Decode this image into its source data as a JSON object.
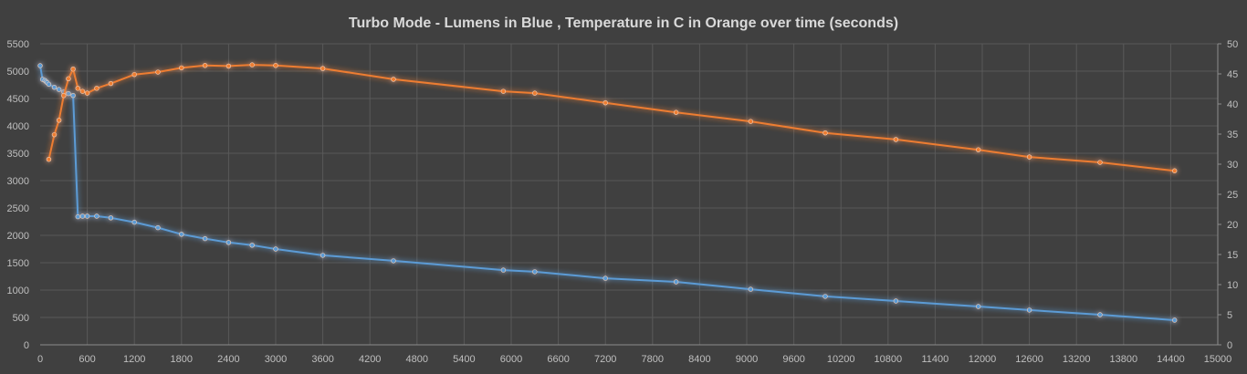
{
  "chart_data": {
    "type": "line",
    "title": "Turbo Mode - Lumens in Blue , Temperature in C in Orange over time (seconds)",
    "xlabel": "",
    "ylabel": "",
    "y2label": "",
    "xlim": [
      0,
      15000
    ],
    "ylim": [
      0,
      5500
    ],
    "y2lim": [
      0,
      50
    ],
    "x_ticks": [
      0,
      600,
      1200,
      1800,
      2400,
      3000,
      3600,
      4200,
      4800,
      5400,
      6000,
      6600,
      7200,
      7800,
      8400,
      9000,
      9600,
      10200,
      10800,
      11400,
      12000,
      12600,
      13200,
      13800,
      14400,
      15000
    ],
    "y_ticks": [
      0,
      500,
      1000,
      1500,
      2000,
      2500,
      3000,
      3500,
      4000,
      4500,
      5000,
      5500
    ],
    "y2_ticks": [
      0,
      5,
      10,
      15,
      20,
      25,
      30,
      35,
      40,
      45,
      50
    ],
    "grid": true,
    "legend": "none",
    "colors": {
      "lumens": "#5b9bd5",
      "temperature": "#ed7d31",
      "background": "#404040",
      "grid": "#595959"
    },
    "series": [
      {
        "name": "Lumens",
        "axis": "left",
        "x": [
          0,
          30,
          60,
          75,
          90,
          110,
          180,
          240,
          300,
          360,
          420,
          480,
          540,
          600,
          720,
          900,
          1200,
          1500,
          1800,
          2100,
          2400,
          2700,
          3000,
          3600,
          4500,
          5900,
          6300,
          7200,
          8100,
          9050,
          10000,
          10900,
          11950,
          12600,
          13500,
          14450
        ],
        "values": [
          5100,
          4850,
          4830,
          4810,
          4790,
          4760,
          4705,
          4665,
          4620,
          4590,
          4555,
          2340,
          2350,
          2350,
          2350,
          2320,
          2240,
          2140,
          2020,
          1940,
          1870,
          1820,
          1750,
          1635,
          1535,
          1365,
          1335,
          1215,
          1150,
          1015,
          885,
          800,
          700,
          635,
          550,
          450
        ]
      },
      {
        "name": "Temperature (C)",
        "axis": "right",
        "x": [
          110,
          180,
          240,
          300,
          360,
          420,
          480,
          540,
          600,
          720,
          900,
          1200,
          1500,
          1800,
          2100,
          2400,
          2700,
          3000,
          3600,
          4500,
          5900,
          6300,
          7200,
          8100,
          9050,
          10000,
          10900,
          11950,
          12600,
          13500,
          14450
        ],
        "values": [
          30.8,
          34.9,
          37.3,
          41.4,
          44.2,
          45.8,
          42.6,
          42.1,
          41.8,
          42.6,
          43.4,
          44.9,
          45.3,
          46.0,
          46.4,
          46.3,
          46.5,
          46.4,
          45.9,
          44.1,
          42.1,
          41.8,
          40.2,
          38.6,
          37.1,
          35.2,
          34.1,
          32.4,
          31.2,
          30.3,
          28.9
        ]
      }
    ]
  }
}
